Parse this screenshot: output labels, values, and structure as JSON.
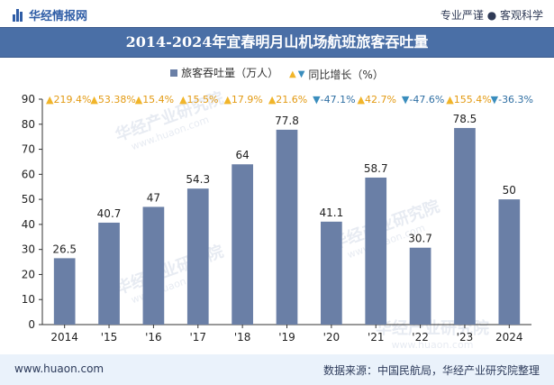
{
  "header": {
    "logo_text": "华经情报网",
    "tagline": "专业严谨 ● 客观科学"
  },
  "chart_data": {
    "type": "bar",
    "title": "2014-2024年宜春明月山机场航班旅客吞吐量",
    "categories": [
      "2014",
      "'15",
      "'16",
      "'17",
      "'18",
      "'19",
      "'20",
      "'21",
      "'22",
      "'23",
      "2024"
    ],
    "series": [
      {
        "name": "旅客吞吐量（万人）",
        "values": [
          26.5,
          40.7,
          47,
          54.3,
          64,
          77.8,
          41.1,
          58.7,
          30.7,
          78.5,
          50
        ],
        "color": "#6a7fa6"
      }
    ],
    "growth_series": {
      "name": "同比增长（%）",
      "labels": [
        "219.4%",
        "53.38%",
        "15.4%",
        "15.5%",
        "17.9%",
        "21.6%",
        "-47.1%",
        "42.7%",
        "-47.6%",
        "155.4%",
        "-36.3%"
      ],
      "direction": [
        "up",
        "up",
        "up",
        "up",
        "up",
        "up",
        "down",
        "up",
        "down",
        "up",
        "down"
      ],
      "up_color": "#f1b52a",
      "down_color": "#3a8dbd"
    },
    "ylim": [
      0,
      90
    ],
    "yticks": [
      0,
      10,
      20,
      30,
      40,
      50,
      60,
      70,
      80,
      90
    ],
    "xlabel": "",
    "ylabel": "",
    "grid": false,
    "legend_position": "top-center"
  },
  "watermarks": [
    "华经产业研究院",
    "www.huaon.com"
  ],
  "footer": {
    "website": "www.huaon.com",
    "source": "数据来源：中国民航局，华经产业研究院整理"
  }
}
